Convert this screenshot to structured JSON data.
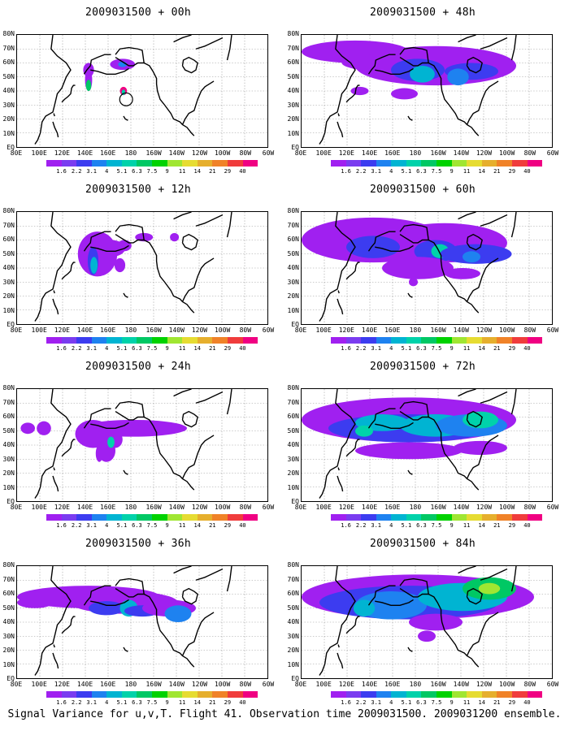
{
  "panels": [
    {
      "title": "2009031500 + 00h"
    },
    {
      "title": "2009031500 + 48h"
    },
    {
      "title": "2009031500 + 12h"
    },
    {
      "title": "2009031500 + 60h"
    },
    {
      "title": "2009031500 + 24h"
    },
    {
      "title": "2009031500 + 72h"
    },
    {
      "title": "2009031500 + 36h"
    },
    {
      "title": "2009031500 + 84h"
    }
  ],
  "lat_labels": [
    "80N",
    "70N",
    "60N",
    "50N",
    "40N",
    "30N",
    "20N",
    "10N",
    "EQ"
  ],
  "lon_labels": [
    "80E",
    "100E",
    "120E",
    "140E",
    "160E",
    "180",
    "160W",
    "140W",
    "120W",
    "100W",
    "80W",
    "60W"
  ],
  "colorbar": {
    "labels": [
      "1.6",
      "2.2",
      "3.1",
      "4",
      "5.1",
      "6.3",
      "7.5",
      "9",
      "11",
      "14",
      "21",
      "29",
      "40"
    ],
    "colors": [
      "#a020f0",
      "#7a3cf0",
      "#3c3cf0",
      "#1e82f0",
      "#00b4d2",
      "#00d2aa",
      "#00c864",
      "#00d200",
      "#a0e632",
      "#e6dc32",
      "#e6af2d",
      "#f08228",
      "#f03c3c",
      "#f00082"
    ]
  },
  "footer": "Signal Variance for u,v,T. Flight 41. Observation time 2009031500. 2009031200 ensemble."
}
